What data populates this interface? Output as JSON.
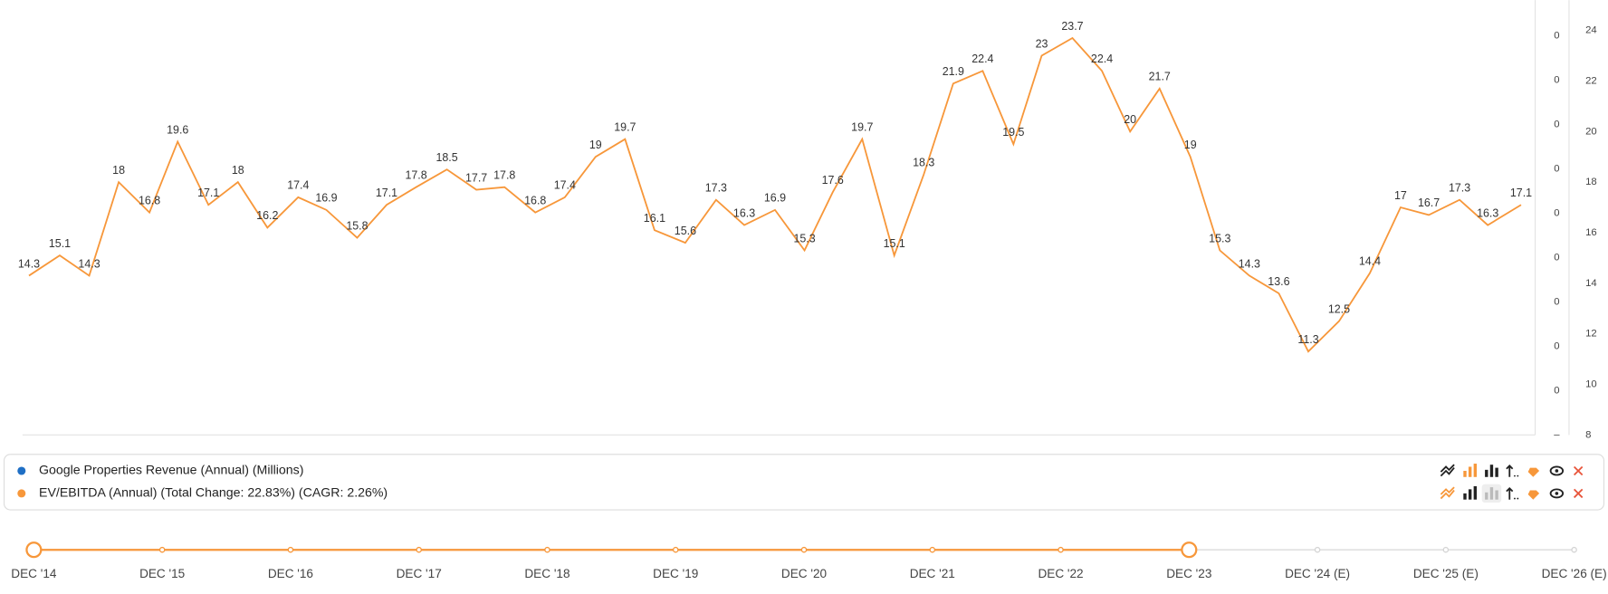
{
  "chart_data": {
    "type": "line",
    "series": [
      {
        "name": "Google Properties Revenue (Annual) (Millions)",
        "color": "#1f6fc5"
      },
      {
        "name": "EV/EBITDA (Annual) (Total Change: 22.83%) (CAGR: 2.26%)",
        "color": "#f7973a",
        "x": [
          2014.88,
          2015.12,
          2015.35,
          2015.58,
          2015.82,
          2016.04,
          2016.28,
          2016.51,
          2016.74,
          2016.98,
          2017.2,
          2017.44,
          2017.67,
          2017.9,
          2018.14,
          2018.37,
          2018.59,
          2018.83,
          2019.06,
          2019.3,
          2019.53,
          2019.76,
          2020,
          2020.24,
          2020.46,
          2020.7,
          2020.93,
          2021.15,
          2021.38,
          2021.63,
          2021.86,
          2022.09,
          2022.32,
          2022.56,
          2022.78,
          2023.02,
          2023.25,
          2023.47,
          2023.7,
          2023.94,
          2024.17,
          2024.4,
          2024.63,
          2024.86,
          2025.1,
          2025.34,
          2025.58,
          2025.8,
          2026.04,
          2026.26,
          2026.52
        ],
        "values": [
          14.3,
          15.1,
          14.3,
          18,
          16.8,
          19.6,
          17.1,
          18,
          16.2,
          17.4,
          16.9,
          15.8,
          17.1,
          17.8,
          18.5,
          17.7,
          17.8,
          16.8,
          17.4,
          19,
          19.7,
          16.1,
          15.6,
          17.3,
          16.3,
          16.9,
          15.3,
          17.6,
          19.7,
          15.1,
          18.3,
          21.9,
          22.4,
          19.5,
          23,
          23.7,
          22.4,
          20,
          21.7,
          19,
          15.3,
          14.3,
          13.6,
          11.3,
          12.5,
          14.4,
          17,
          16.7,
          17.3,
          16.3,
          17.1
        ]
      }
    ],
    "xlim": [
      2014.83,
      2026.63
    ],
    "ylim": [
      8,
      25.2
    ],
    "yticks": [
      8,
      10,
      12,
      14,
      16,
      18,
      20,
      22,
      24
    ],
    "revenue_axis_labels": [
      "–",
      "0",
      "0",
      "0",
      "0",
      "0",
      "0",
      "0",
      "0",
      "0"
    ]
  },
  "timeline": {
    "labels": [
      "DEC '14",
      "DEC '15",
      "DEC '16",
      "DEC '17",
      "DEC '18",
      "DEC '19",
      "DEC '20",
      "DEC '21",
      "DEC '22",
      "DEC '23",
      "DEC '24 (E)",
      "DEC '25 (E)",
      "DEC '26 (E)"
    ],
    "selected_range": [
      0,
      9
    ],
    "color": "#f7973a"
  }
}
